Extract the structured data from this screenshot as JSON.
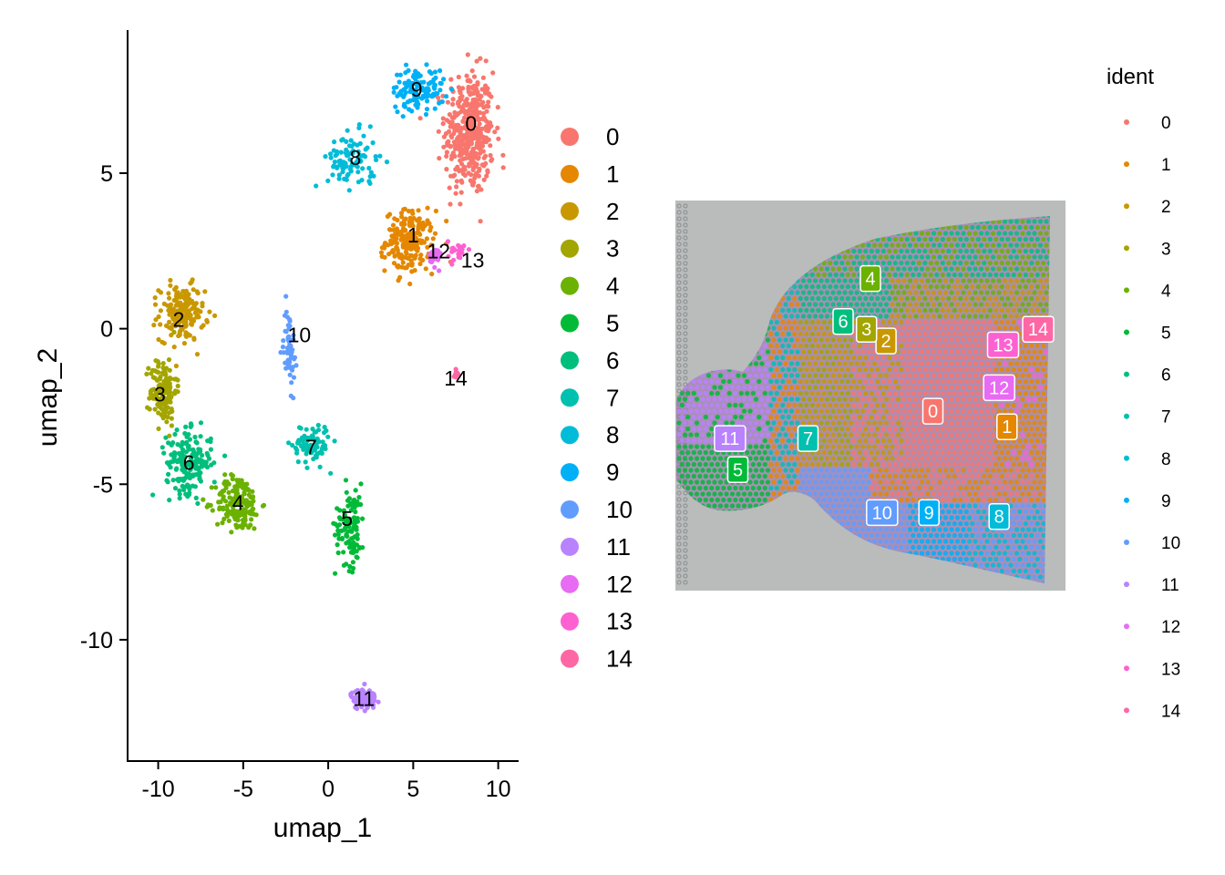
{
  "chart_data": [
    {
      "type": "scatter",
      "title": "",
      "xlabel": "umap_1",
      "ylabel": "umap_2",
      "xlim": [
        -11.8,
        11.2
      ],
      "ylim": [
        -13.9,
        9.6
      ],
      "x_ticks": [
        -10,
        -5,
        0,
        5,
        10
      ],
      "x_tick_labels": [
        "-10",
        "-5",
        "0",
        "5",
        "10"
      ],
      "y_ticks": [
        -10,
        -5,
        0,
        5
      ],
      "y_tick_labels": [
        "-10",
        "-5",
        "0",
        "5"
      ],
      "grid": false,
      "legend_position": "right",
      "series": [
        {
          "name": "0",
          "color": "#F8766D",
          "label_pos": [
            8.4,
            6.6
          ],
          "center": [
            8.3,
            6.3
          ],
          "spread": [
            1.3,
            1.8
          ],
          "n": 420
        },
        {
          "name": "1",
          "color": "#E58700",
          "label_pos": [
            5.0,
            3.0
          ],
          "center": [
            4.8,
            2.8
          ],
          "spread": [
            1.3,
            0.9
          ],
          "n": 200
        },
        {
          "name": "2",
          "color": "#C99800",
          "label_pos": [
            -8.8,
            0.3
          ],
          "center": [
            -8.6,
            0.5
          ],
          "spread": [
            1.2,
            0.8
          ],
          "n": 170
        },
        {
          "name": "3",
          "color": "#A3A500",
          "label_pos": [
            -9.9,
            -2.1
          ],
          "center": [
            -9.7,
            -2.0
          ],
          "spread": [
            0.7,
            1.0
          ],
          "n": 140
        },
        {
          "name": "4",
          "color": "#6BB100",
          "label_pos": [
            -5.3,
            -5.6
          ],
          "center": [
            -5.3,
            -5.6
          ],
          "spread": [
            1.2,
            0.8
          ],
          "n": 180
        },
        {
          "name": "5",
          "color": "#00BA38",
          "label_pos": [
            1.1,
            -6.1
          ],
          "center": [
            1.3,
            -6.3
          ],
          "spread": [
            0.8,
            1.2
          ],
          "n": 110
        },
        {
          "name": "6",
          "color": "#00BF7D",
          "label_pos": [
            -8.2,
            -4.3
          ],
          "center": [
            -8.2,
            -4.3
          ],
          "spread": [
            1.2,
            0.9
          ],
          "n": 180
        },
        {
          "name": "7",
          "color": "#00C0AF",
          "label_pos": [
            -1.0,
            -3.8
          ],
          "center": [
            -1.0,
            -3.7
          ],
          "spread": [
            1.0,
            0.6
          ],
          "n": 90
        },
        {
          "name": "8",
          "color": "#00BCD8",
          "label_pos": [
            1.6,
            5.5
          ],
          "center": [
            1.4,
            5.4
          ],
          "spread": [
            1.3,
            0.8
          ],
          "n": 100
        },
        {
          "name": "9",
          "color": "#00B0F6",
          "label_pos": [
            5.2,
            7.7
          ],
          "center": [
            5.3,
            7.7
          ],
          "spread": [
            1.4,
            0.6
          ],
          "n": 120
        },
        {
          "name": "10",
          "color": "#619CFF",
          "label_pos": [
            -1.7,
            -0.2
          ],
          "center": [
            -2.3,
            -0.6
          ],
          "spread": [
            0.3,
            1.2
          ],
          "n": 60
        },
        {
          "name": "11",
          "color": "#B983FF",
          "label_pos": [
            2.1,
            -11.9
          ],
          "center": [
            2.1,
            -11.9
          ],
          "spread": [
            0.7,
            0.3
          ],
          "n": 90
        },
        {
          "name": "12",
          "color": "#E76BF3",
          "label_pos": [
            6.5,
            2.5
          ],
          "center": [
            6.3,
            2.3
          ],
          "spread": [
            0.3,
            0.3
          ],
          "n": 30
        },
        {
          "name": "13",
          "color": "#FD61D1",
          "label_pos": [
            8.5,
            2.2
          ],
          "center": [
            7.6,
            2.5
          ],
          "spread": [
            0.5,
            0.3
          ],
          "n": 25
        },
        {
          "name": "14",
          "color": "#FF67A4",
          "label_pos": [
            7.5,
            -1.6
          ],
          "center": [
            7.5,
            -1.5
          ],
          "spread": [
            0.1,
            0.2
          ],
          "n": 8
        }
      ]
    },
    {
      "type": "scatter",
      "title": "",
      "legend_title": "ident",
      "legend_position": "right",
      "background": "spatial tissue image",
      "labels": [
        {
          "name": "0",
          "color": "#F8766D",
          "pos": [
            0.66,
            0.54
          ]
        },
        {
          "name": "1",
          "color": "#E58700",
          "pos": [
            0.85,
            0.58
          ]
        },
        {
          "name": "2",
          "color": "#C99800",
          "pos": [
            0.54,
            0.36
          ]
        },
        {
          "name": "3",
          "color": "#A3A500",
          "pos": [
            0.49,
            0.33
          ]
        },
        {
          "name": "4",
          "color": "#6BB100",
          "pos": [
            0.5,
            0.2
          ]
        },
        {
          "name": "5",
          "color": "#00BA38",
          "pos": [
            0.16,
            0.69
          ]
        },
        {
          "name": "6",
          "color": "#00BF7D",
          "pos": [
            0.43,
            0.31
          ]
        },
        {
          "name": "7",
          "color": "#00C0AF",
          "pos": [
            0.34,
            0.61
          ]
        },
        {
          "name": "8",
          "color": "#00BCD8",
          "pos": [
            0.83,
            0.81
          ]
        },
        {
          "name": "9",
          "color": "#00B0F6",
          "pos": [
            0.65,
            0.8
          ]
        },
        {
          "name": "10",
          "color": "#619CFF",
          "pos": [
            0.53,
            0.8
          ]
        },
        {
          "name": "11",
          "color": "#B983FF",
          "pos": [
            0.14,
            0.61
          ]
        },
        {
          "name": "12",
          "color": "#E76BF3",
          "pos": [
            0.83,
            0.48
          ]
        },
        {
          "name": "13",
          "color": "#FD61D1",
          "pos": [
            0.84,
            0.37
          ]
        },
        {
          "name": "14",
          "color": "#FF67A4",
          "pos": [
            0.93,
            0.33
          ]
        }
      ]
    }
  ],
  "legend_main": {
    "items": [
      "0",
      "1",
      "2",
      "3",
      "4",
      "5",
      "6",
      "7",
      "8",
      "9",
      "10",
      "11",
      "12",
      "13",
      "14"
    ]
  },
  "legend_spatial": {
    "title": "ident",
    "items": [
      "0",
      "1",
      "2",
      "3",
      "4",
      "5",
      "6",
      "7",
      "8",
      "9",
      "10",
      "11",
      "12",
      "13",
      "14"
    ]
  },
  "colors": {
    "tissue_bg": "#b9bcbb",
    "tissue_outline": "#9c6ab0"
  }
}
